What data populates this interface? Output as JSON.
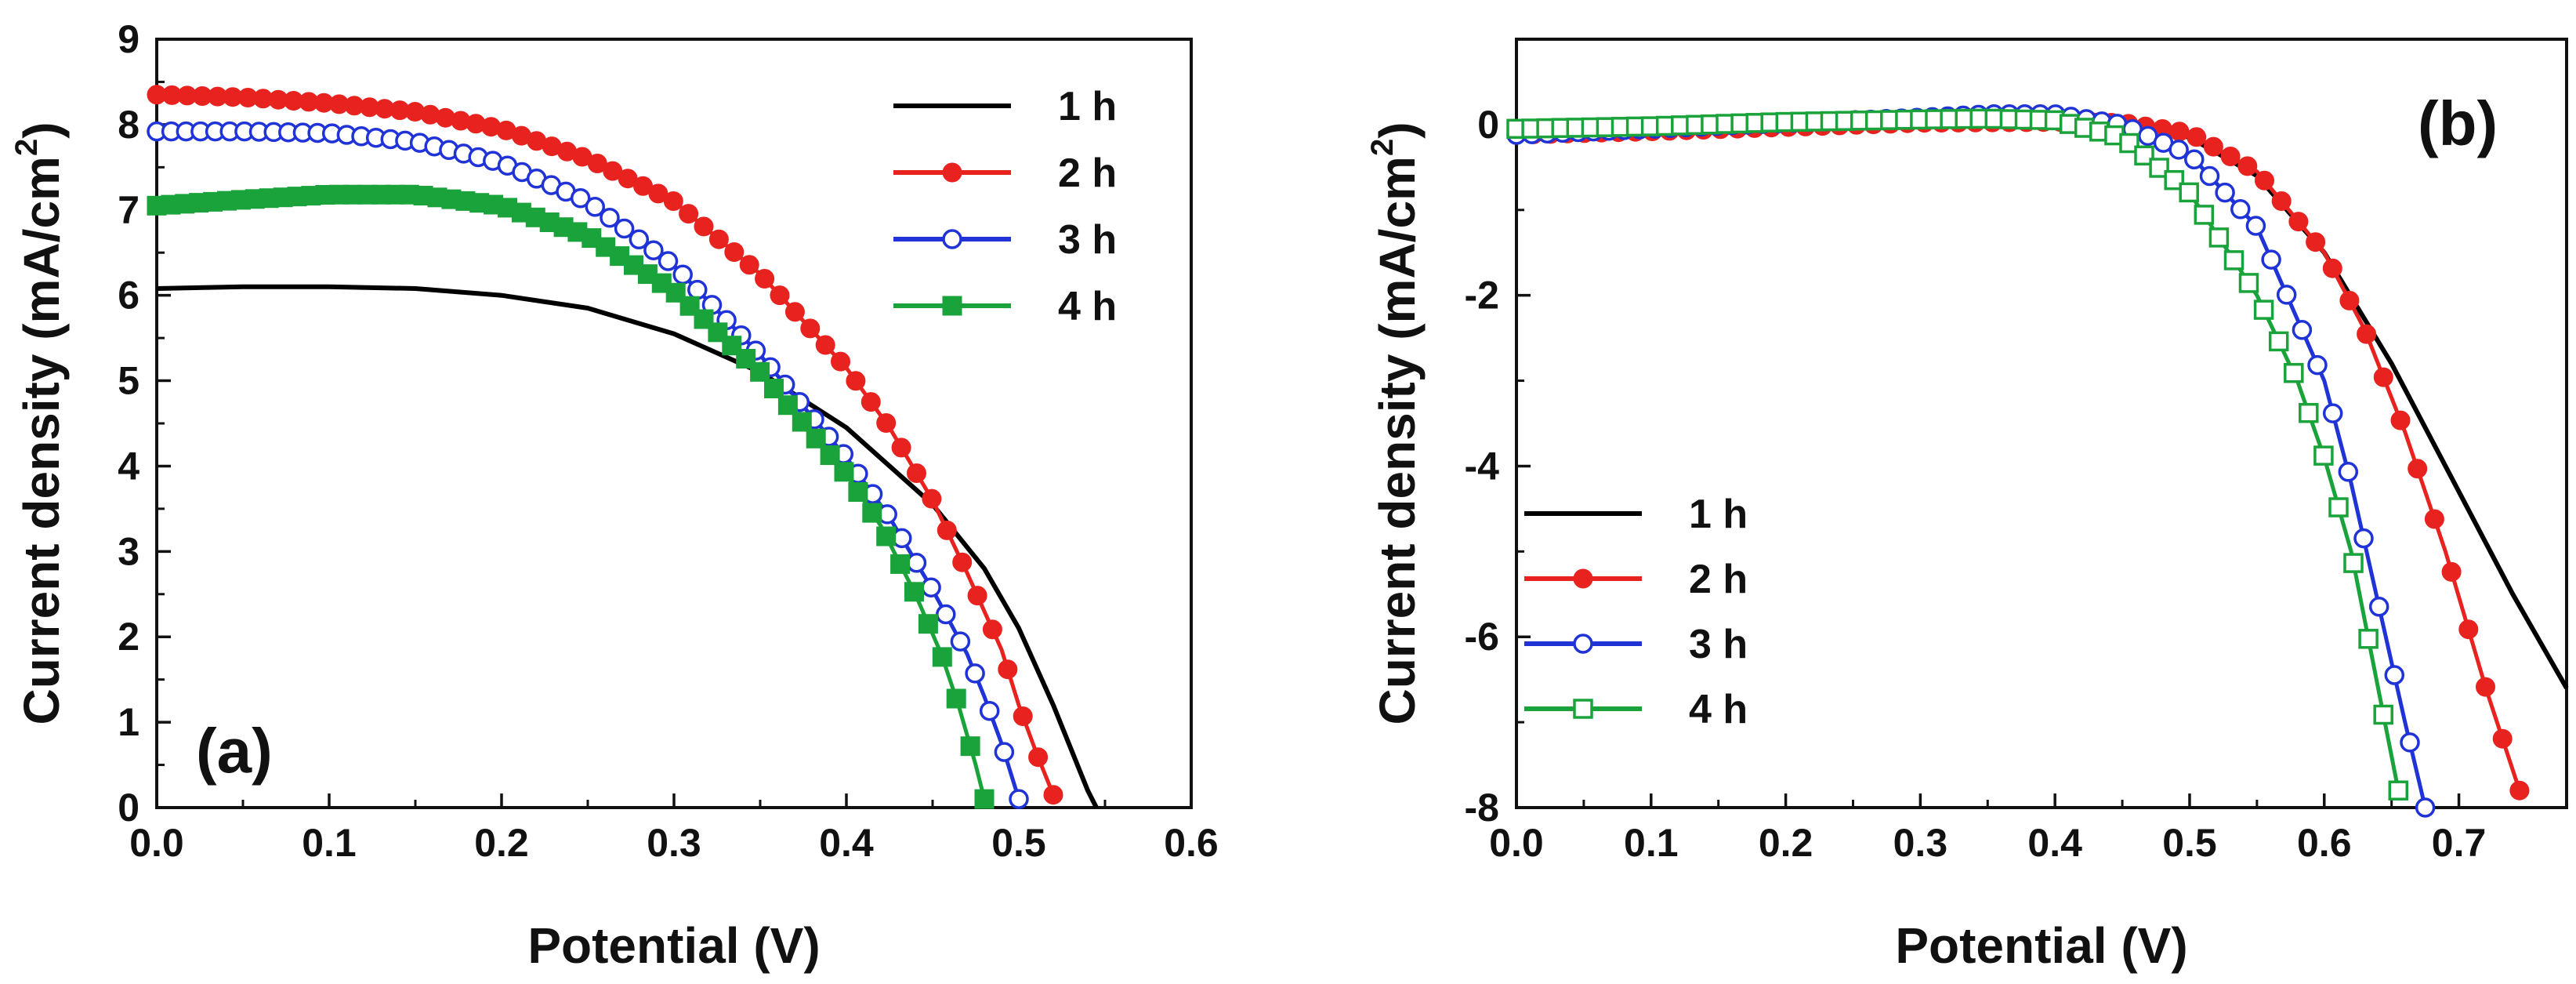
{
  "figure": {
    "panel_a_label": "(a)",
    "panel_b_label": "(b)"
  },
  "chart_data": [
    {
      "type": "line",
      "panel": "(a)",
      "xlabel": "Potential (V)",
      "ylabel_main": "Current density (mA/cm",
      "ylabel_sup": "2",
      "ylabel_close": ")",
      "xlim": [
        0.0,
        0.6
      ],
      "ylim": [
        0,
        9
      ],
      "xticks": [
        "0.0",
        "0.1",
        "0.2",
        "0.3",
        "0.4",
        "0.5",
        "0.6"
      ],
      "yticks": [
        "0",
        "1",
        "2",
        "3",
        "4",
        "5",
        "6",
        "7",
        "8",
        "9"
      ],
      "legend_position": "top-right",
      "series": [
        {
          "name": "1 h",
          "color": "#000000",
          "marker": "none",
          "x": [
            0.0,
            0.05,
            0.1,
            0.15,
            0.2,
            0.25,
            0.3,
            0.35,
            0.4,
            0.45,
            0.48,
            0.5,
            0.52,
            0.54,
            0.545
          ],
          "y": [
            6.08,
            6.1,
            6.1,
            6.08,
            6.0,
            5.85,
            5.55,
            5.1,
            4.45,
            3.55,
            2.8,
            2.1,
            1.2,
            0.2,
            0.0
          ]
        },
        {
          "name": "2 h",
          "color": "#e8231f",
          "marker": "filled-circle",
          "x": [
            0.0,
            0.05,
            0.1,
            0.15,
            0.2,
            0.25,
            0.3,
            0.35,
            0.4,
            0.425,
            0.45,
            0.47,
            0.49,
            0.5,
            0.51,
            0.52
          ],
          "y": [
            8.35,
            8.32,
            8.25,
            8.15,
            7.95,
            7.6,
            7.1,
            6.25,
            5.15,
            4.45,
            3.6,
            2.75,
            1.85,
            1.2,
            0.65,
            0.15
          ]
        },
        {
          "name": "3 h",
          "color": "#1f33d6",
          "marker": "open-circle",
          "x": [
            0.0,
            0.05,
            0.1,
            0.15,
            0.2,
            0.25,
            0.3,
            0.35,
            0.4,
            0.425,
            0.45,
            0.47,
            0.48,
            0.49,
            0.5
          ],
          "y": [
            7.92,
            7.92,
            7.9,
            7.8,
            7.55,
            7.1,
            6.35,
            5.3,
            4.1,
            3.4,
            2.55,
            1.8,
            1.3,
            0.75,
            0.1
          ]
        },
        {
          "name": "4 h",
          "color": "#1aa33a",
          "marker": "filled-square",
          "x": [
            0.0,
            0.05,
            0.1,
            0.15,
            0.2,
            0.25,
            0.3,
            0.35,
            0.4,
            0.42,
            0.44,
            0.455,
            0.465,
            0.475,
            0.48
          ],
          "y": [
            7.05,
            7.12,
            7.18,
            7.18,
            7.05,
            6.7,
            6.05,
            5.1,
            3.9,
            3.3,
            2.5,
            1.8,
            1.2,
            0.5,
            0.1
          ]
        }
      ]
    },
    {
      "type": "line",
      "panel": "(b)",
      "xlabel": "Potential (V)",
      "ylabel_main": "Current density (mA/cm",
      "ylabel_sup": "2",
      "ylabel_close": ")",
      "xlim": [
        0.0,
        0.78
      ],
      "ylim": [
        -8,
        1
      ],
      "xticks": [
        "0.0",
        "0.1",
        "0.2",
        "0.3",
        "0.4",
        "0.5",
        "0.6",
        "0.7"
      ],
      "yticks": [
        "0",
        "-2",
        "-4",
        "-6",
        "-8"
      ],
      "legend_position": "bottom-left",
      "series": [
        {
          "name": "1 h",
          "color": "#000000",
          "marker": "none",
          "x": [
            0.0,
            0.1,
            0.2,
            0.3,
            0.4,
            0.45,
            0.5,
            0.55,
            0.6,
            0.65,
            0.7,
            0.74,
            0.78
          ],
          "y": [
            -0.12,
            -0.08,
            -0.03,
            0.02,
            0.03,
            0.0,
            -0.15,
            -0.6,
            -1.5,
            -2.8,
            -4.3,
            -5.5,
            -6.6
          ]
        },
        {
          "name": "2 h",
          "color": "#e8231f",
          "marker": "filled-circle",
          "x": [
            0.0,
            0.1,
            0.2,
            0.3,
            0.4,
            0.45,
            0.5,
            0.55,
            0.6,
            0.63,
            0.66,
            0.69,
            0.72,
            0.745
          ],
          "y": [
            -0.12,
            -0.08,
            -0.03,
            0.02,
            0.03,
            0.02,
            -0.1,
            -0.55,
            -1.5,
            -2.4,
            -3.6,
            -5.0,
            -6.6,
            -7.8
          ]
        },
        {
          "name": "3 h",
          "color": "#1f33d6",
          "marker": "open-circle",
          "x": [
            0.0,
            0.1,
            0.2,
            0.3,
            0.35,
            0.4,
            0.45,
            0.5,
            0.55,
            0.6,
            0.62,
            0.64,
            0.66,
            0.675
          ],
          "y": [
            -0.12,
            -0.05,
            0.02,
            0.08,
            0.12,
            0.12,
            0.0,
            -0.35,
            -1.2,
            -3.0,
            -4.2,
            -5.6,
            -7.0,
            -8.0
          ]
        },
        {
          "name": "4 h",
          "color": "#1aa33a",
          "marker": "open-square",
          "x": [
            0.0,
            0.1,
            0.2,
            0.3,
            0.35,
            0.4,
            0.45,
            0.5,
            0.55,
            0.58,
            0.6,
            0.62,
            0.64,
            0.655
          ],
          "y": [
            -0.05,
            -0.02,
            0.03,
            0.06,
            0.07,
            0.05,
            -0.15,
            -0.8,
            -2.0,
            -3.0,
            -3.9,
            -5.0,
            -6.6,
            -7.8
          ]
        }
      ]
    }
  ]
}
